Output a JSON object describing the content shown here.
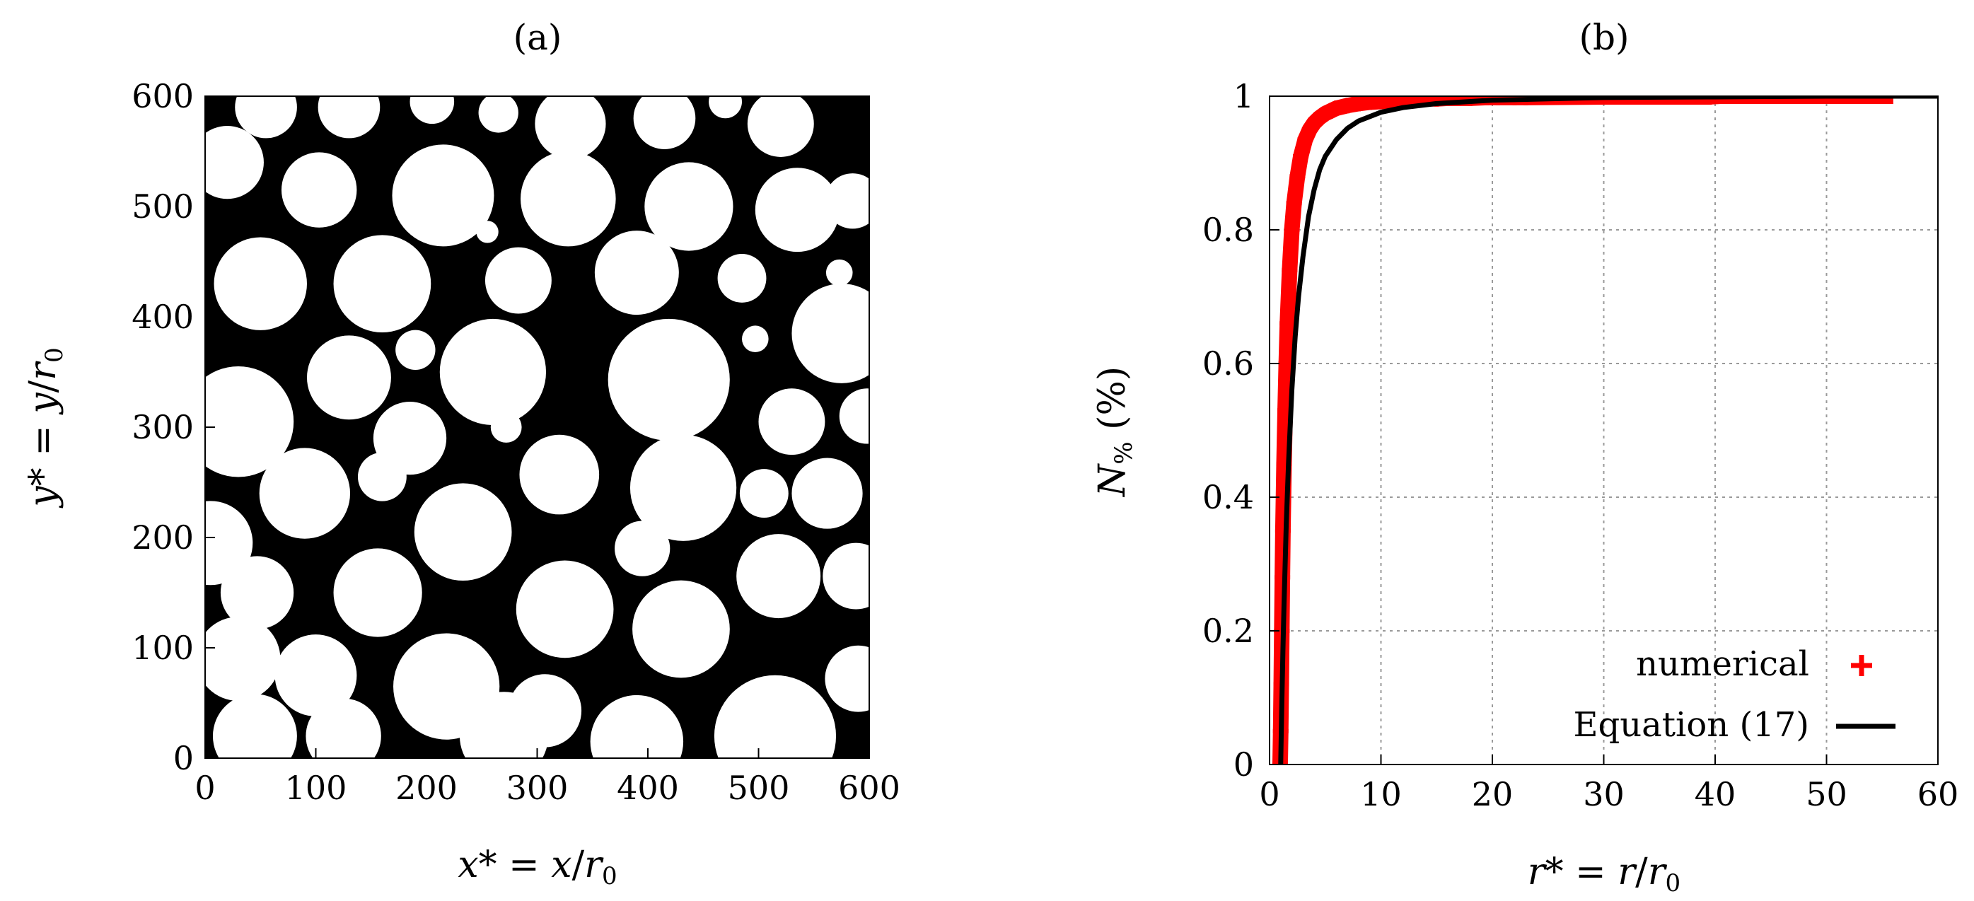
{
  "chart_data": [
    {
      "type": "scatter",
      "title": "(a)",
      "xlabel": "x* = x/r0",
      "ylabel": "y* = y/r0",
      "xlabel_parts": {
        "a": "x",
        "b": "* = ",
        "c": "x",
        "d": "/",
        "e": "r",
        "f": "0"
      },
      "ylabel_parts": {
        "a": "y",
        "b": "* = ",
        "c": "y",
        "d": "/",
        "e": "r",
        "f": "0"
      },
      "xlim": [
        0,
        600
      ],
      "ylim": [
        0,
        600
      ],
      "xticks": [
        0,
        100,
        200,
        300,
        400,
        500,
        600
      ],
      "yticks": [
        0,
        100,
        200,
        300,
        400,
        500,
        600
      ],
      "grid": false,
      "background_color": "#000000",
      "particle_color": "#ffffff",
      "description": "Packing of white circular particles on black background (Apollonian-like polydisperse packing)",
      "circles": [
        {
          "x": 45,
          "y": 20,
          "r": 38
        },
        {
          "x": 125,
          "y": 20,
          "r": 34
        },
        {
          "x": 270,
          "y": 20,
          "r": 40
        },
        {
          "x": 390,
          "y": 15,
          "r": 42
        },
        {
          "x": 515,
          "y": 20,
          "r": 55
        },
        {
          "x": 30,
          "y": 90,
          "r": 38
        },
        {
          "x": 100,
          "y": 75,
          "r": 37
        },
        {
          "x": 218,
          "y": 65,
          "r": 48
        },
        {
          "x": 307,
          "y": 43,
          "r": 33
        },
        {
          "x": 430,
          "y": 117,
          "r": 44
        },
        {
          "x": 590,
          "y": 72,
          "r": 30
        },
        {
          "x": 47,
          "y": 150,
          "r": 33
        },
        {
          "x": 156,
          "y": 150,
          "r": 40
        },
        {
          "x": 325,
          "y": 135,
          "r": 44
        },
        {
          "x": 518,
          "y": 165,
          "r": 38
        },
        {
          "x": 588,
          "y": 165,
          "r": 30
        },
        {
          "x": 5,
          "y": 195,
          "r": 38
        },
        {
          "x": 233,
          "y": 205,
          "r": 44
        },
        {
          "x": 395,
          "y": 190,
          "r": 25
        },
        {
          "x": 90,
          "y": 240,
          "r": 41
        },
        {
          "x": 160,
          "y": 255,
          "r": 22
        },
        {
          "x": 320,
          "y": 257,
          "r": 36
        },
        {
          "x": 432,
          "y": 245,
          "r": 48
        },
        {
          "x": 505,
          "y": 240,
          "r": 22
        },
        {
          "x": 562,
          "y": 240,
          "r": 32
        },
        {
          "x": 185,
          "y": 290,
          "r": 33
        },
        {
          "x": 272,
          "y": 300,
          "r": 14
        },
        {
          "x": 30,
          "y": 305,
          "r": 50
        },
        {
          "x": 530,
          "y": 305,
          "r": 30
        },
        {
          "x": 598,
          "y": 310,
          "r": 25
        },
        {
          "x": 130,
          "y": 345,
          "r": 38
        },
        {
          "x": 260,
          "y": 350,
          "r": 48
        },
        {
          "x": 419,
          "y": 343,
          "r": 55
        },
        {
          "x": 190,
          "y": 370,
          "r": 18
        },
        {
          "x": 575,
          "y": 385,
          "r": 45
        },
        {
          "x": 50,
          "y": 430,
          "r": 42
        },
        {
          "x": 160,
          "y": 430,
          "r": 44
        },
        {
          "x": 283,
          "y": 433,
          "r": 30
        },
        {
          "x": 390,
          "y": 440,
          "r": 38
        },
        {
          "x": 485,
          "y": 435,
          "r": 22
        },
        {
          "x": 497,
          "y": 380,
          "r": 12
        },
        {
          "x": 20,
          "y": 540,
          "r": 33
        },
        {
          "x": 103,
          "y": 515,
          "r": 34
        },
        {
          "x": 215,
          "y": 510,
          "r": 46
        },
        {
          "x": 328,
          "y": 507,
          "r": 43
        },
        {
          "x": 437,
          "y": 500,
          "r": 40
        },
        {
          "x": 535,
          "y": 497,
          "r": 38
        },
        {
          "x": 255,
          "y": 477,
          "r": 10
        },
        {
          "x": 55,
          "y": 590,
          "r": 28
        },
        {
          "x": 130,
          "y": 590,
          "r": 28
        },
        {
          "x": 265,
          "y": 585,
          "r": 18
        },
        {
          "x": 330,
          "y": 575,
          "r": 32
        },
        {
          "x": 415,
          "y": 580,
          "r": 28
        },
        {
          "x": 520,
          "y": 575,
          "r": 30
        },
        {
          "x": 585,
          "y": 505,
          "r": 25
        },
        {
          "x": 573,
          "y": 440,
          "r": 12
        },
        {
          "x": 205,
          "y": 595,
          "r": 20
        },
        {
          "x": 470,
          "y": 595,
          "r": 15
        }
      ]
    },
    {
      "type": "line",
      "title": "(b)",
      "xlabel": "r* = r/r0",
      "ylabel": "N% (%)",
      "xlabel_parts": {
        "a": "r",
        "b": "* = ",
        "c": "r",
        "d": "/",
        "e": "r",
        "f": "0"
      },
      "ylabel_parts": {
        "a": "N",
        "b": "%",
        "c": " (%)"
      },
      "xlim": [
        0,
        60
      ],
      "ylim": [
        0,
        1
      ],
      "xticks": [
        0,
        10,
        20,
        30,
        40,
        50,
        60
      ],
      "yticks": [
        0,
        0.2,
        0.4,
        0.6,
        0.8,
        1
      ],
      "ytick_labels": [
        "0",
        "0.2",
        "0.4",
        "0.6",
        "0.8",
        "1"
      ],
      "grid": true,
      "legend_position": "bottom-right",
      "series": [
        {
          "name": "numerical",
          "marker": "plus",
          "color": "#ff0000",
          "x": [
            0.95,
            1.0,
            1.05,
            1.1,
            1.15,
            1.2,
            1.3,
            1.4,
            1.5,
            1.6,
            1.8,
            2.0,
            2.2,
            2.5,
            2.8,
            3.2,
            3.6,
            4.0,
            4.5,
            5.0,
            5.5,
            6.0,
            7.0,
            8.0,
            9.0,
            10,
            11,
            12,
            13,
            14,
            15,
            16,
            17,
            18,
            19.5,
            20.5,
            22,
            23,
            30.2,
            33.5,
            34.5,
            35.8,
            36.5,
            37.2,
            38.3,
            39.5,
            40.5,
            41.5,
            42.5,
            43.5,
            44.5,
            45.5,
            46.5,
            47.5,
            49.0,
            50.2,
            51.5,
            52.5,
            53.2,
            54.5,
            55.8
          ],
          "y": [
            0.0,
            0.05,
            0.12,
            0.2,
            0.28,
            0.35,
            0.45,
            0.53,
            0.6,
            0.66,
            0.74,
            0.8,
            0.84,
            0.88,
            0.91,
            0.935,
            0.95,
            0.96,
            0.968,
            0.974,
            0.978,
            0.982,
            0.986,
            0.989,
            0.991,
            0.992,
            0.993,
            0.994,
            0.995,
            0.996,
            0.996,
            0.997,
            0.997,
            0.997,
            0.998,
            0.998,
            0.998,
            0.998,
            0.999,
            0.999,
            0.999,
            0.999,
            0.999,
            0.999,
            0.999,
            0.999,
            1.0,
            1.0,
            1.0,
            1.0,
            1.0,
            1.0,
            1.0,
            1.0,
            1.0,
            1.0,
            1.0,
            1.0,
            1.0,
            1.0,
            1.0
          ]
        },
        {
          "name": "Equation (17)",
          "marker": "line",
          "color": "#000000",
          "x": [
            1.0,
            1.1,
            1.2,
            1.3,
            1.4,
            1.5,
            1.7,
            2.0,
            2.3,
            2.6,
            3.0,
            3.5,
            4.0,
            4.5,
            5.0,
            6.0,
            7.0,
            8.0,
            10,
            12,
            15,
            20,
            25,
            30,
            40,
            50,
            60
          ],
          "y": [
            0.0,
            0.09,
            0.17,
            0.24,
            0.3,
            0.36,
            0.45,
            0.56,
            0.64,
            0.7,
            0.76,
            0.82,
            0.86,
            0.89,
            0.91,
            0.935,
            0.952,
            0.963,
            0.976,
            0.983,
            0.989,
            0.994,
            0.996,
            0.998,
            0.999,
            1.0,
            1.0
          ]
        }
      ]
    }
  ]
}
